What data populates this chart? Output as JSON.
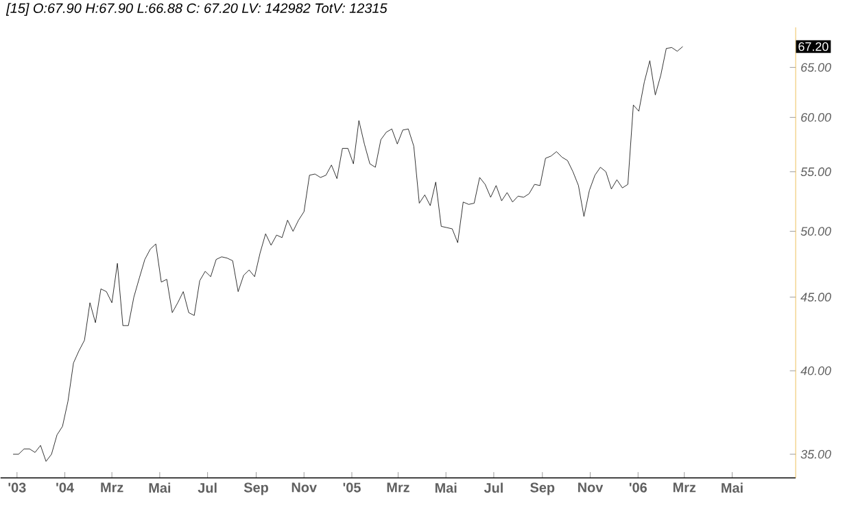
{
  "chart_data": {
    "type": "line",
    "title": "[15] O:67.90 H:67.90 L:66.88 C: 67.20 LV: 142982 TotV: 12315",
    "log": "y",
    "color": "#000000",
    "xlim": [
      "2003-10-11",
      "2006-07-21"
    ],
    "ylim": [
      33.7,
      69.3
    ],
    "xticks": [
      {
        "value": "2003-11-01",
        "label": "'03"
      },
      {
        "value": "2004-01-01",
        "label": "'04"
      },
      {
        "value": "2004-03-01",
        "label": "Mrz"
      },
      {
        "value": "2004-05-01",
        "label": "Mai"
      },
      {
        "value": "2004-07-01",
        "label": "Jul"
      },
      {
        "value": "2004-09-01",
        "label": "Sep"
      },
      {
        "value": "2004-11-01",
        "label": "Nov"
      },
      {
        "value": "2005-01-01",
        "label": "'05"
      },
      {
        "value": "2005-03-01",
        "label": "Mrz"
      },
      {
        "value": "2005-05-01",
        "label": "Mai"
      },
      {
        "value": "2005-07-01",
        "label": "Jul"
      },
      {
        "value": "2005-09-01",
        "label": "Sep"
      },
      {
        "value": "2005-11-01",
        "label": "Nov"
      },
      {
        "value": "2006-01-01",
        "label": "'06"
      },
      {
        "value": "2006-03-01",
        "label": "Mrz"
      },
      {
        "value": "2006-05-01",
        "label": "Mai"
      }
    ],
    "yticks": [
      {
        "value": 35,
        "label": "35.00"
      },
      {
        "value": 40,
        "label": "40.00"
      },
      {
        "value": 45,
        "label": "45.00"
      },
      {
        "value": 50,
        "label": "50.00"
      },
      {
        "value": 55,
        "label": "55.00"
      },
      {
        "value": 60,
        "label": "60.00"
      },
      {
        "value": 65,
        "label": "65.00"
      }
    ],
    "annotations": [
      "67.20"
    ],
    "x": [
      "2003-10-27",
      "2003-11-03",
      "2003-11-10",
      "2003-11-17",
      "2003-11-24",
      "2003-12-01",
      "2003-12-08",
      "2003-12-15",
      "2003-12-22",
      "2003-12-29",
      "2004-01-05",
      "2004-01-12",
      "2004-01-19",
      "2004-01-26",
      "2004-02-02",
      "2004-02-09",
      "2004-02-16",
      "2004-02-23",
      "2004-03-01",
      "2004-03-08",
      "2004-03-15",
      "2004-03-22",
      "2004-03-29",
      "2004-04-05",
      "2004-04-12",
      "2004-04-19",
      "2004-04-26",
      "2004-05-03",
      "2004-05-10",
      "2004-05-17",
      "2004-05-24",
      "2004-05-31",
      "2004-06-07",
      "2004-06-14",
      "2004-06-21",
      "2004-06-28",
      "2004-07-05",
      "2004-07-12",
      "2004-07-19",
      "2004-07-26",
      "2004-08-02",
      "2004-08-09",
      "2004-08-16",
      "2004-08-23",
      "2004-08-30",
      "2004-09-06",
      "2004-09-13",
      "2004-09-20",
      "2004-09-27",
      "2004-10-04",
      "2004-10-11",
      "2004-10-18",
      "2004-10-25",
      "2004-11-01",
      "2004-11-08",
      "2004-11-15",
      "2004-11-22",
      "2004-11-29",
      "2004-12-06",
      "2004-12-13",
      "2004-12-20",
      "2004-12-27",
      "2005-01-03",
      "2005-01-10",
      "2005-01-17",
      "2005-01-24",
      "2005-01-31",
      "2005-02-07",
      "2005-02-14",
      "2005-02-21",
      "2005-02-28",
      "2005-03-07",
      "2005-03-14",
      "2005-03-21",
      "2005-03-28",
      "2005-04-04",
      "2005-04-11",
      "2005-04-18",
      "2005-04-25",
      "2005-05-02",
      "2005-05-09",
      "2005-05-16",
      "2005-05-23",
      "2005-05-30",
      "2005-06-06",
      "2005-06-13",
      "2005-06-20",
      "2005-06-27",
      "2005-07-04",
      "2005-07-11",
      "2005-07-18",
      "2005-07-25",
      "2005-08-01",
      "2005-08-08",
      "2005-08-15",
      "2005-08-22",
      "2005-08-29",
      "2005-09-05",
      "2005-09-12",
      "2005-09-19",
      "2005-09-26",
      "2005-10-03",
      "2005-10-10",
      "2005-10-17",
      "2005-10-24",
      "2005-10-31",
      "2005-11-07",
      "2005-11-14",
      "2005-11-21",
      "2005-11-28",
      "2005-12-05",
      "2005-12-12",
      "2005-12-19",
      "2005-12-26",
      "2006-01-02",
      "2006-01-09",
      "2006-01-16",
      "2006-01-23",
      "2006-01-30",
      "2006-02-06",
      "2006-02-13",
      "2006-02-20",
      "2006-02-27"
    ],
    "values": [
      35.0,
      35.0,
      35.3,
      35.3,
      35.1,
      35.5,
      34.6,
      35.0,
      36.1,
      36.6,
      38.1,
      40.5,
      41.3,
      42.0,
      44.6,
      43.2,
      45.6,
      45.4,
      44.6,
      47.5,
      43.0,
      43.0,
      45.0,
      46.4,
      47.8,
      48.6,
      49.0,
      46.1,
      46.3,
      43.9,
      44.6,
      45.4,
      43.9,
      43.7,
      46.2,
      46.9,
      46.5,
      47.8,
      48.0,
      47.9,
      47.7,
      45.4,
      46.6,
      47.0,
      46.5,
      48.3,
      49.8,
      48.9,
      49.7,
      49.5,
      50.9,
      50.0,
      50.9,
      51.6,
      54.7,
      54.8,
      54.5,
      54.7,
      55.6,
      54.4,
      57.1,
      57.1,
      55.7,
      59.7,
      57.5,
      55.7,
      55.4,
      57.9,
      58.6,
      58.9,
      57.5,
      58.8,
      58.9,
      57.3,
      52.3,
      53.0,
      52.1,
      54.1,
      50.4,
      50.3,
      50.2,
      49.1,
      52.4,
      52.2,
      52.3,
      54.5,
      53.9,
      52.8,
      53.8,
      52.5,
      53.2,
      52.4,
      52.9,
      52.8,
      53.1,
      53.9,
      53.8,
      56.2,
      56.4,
      56.8,
      56.3,
      56.0,
      55.0,
      53.8,
      51.2,
      53.4,
      54.7,
      55.4,
      55.0,
      53.5,
      54.3,
      53.6,
      53.9,
      61.2,
      60.6,
      63.5,
      65.7,
      62.2,
      64.2,
      67.0,
      67.1,
      66.7,
      67.2
    ]
  }
}
